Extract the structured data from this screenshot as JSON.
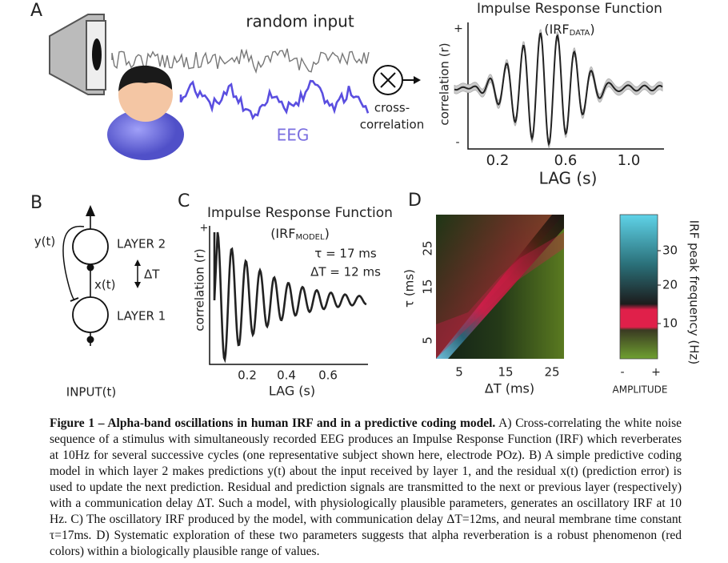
{
  "figure": {
    "panel_a": {
      "letter": "A",
      "stimulus_label": "random input",
      "eeg_label": "EEG",
      "operator_label": [
        "cross-",
        "correlation"
      ],
      "plot": {
        "title": "Impulse Response Function",
        "subtitle_prefix": "(IRF",
        "subtitle_sub": "DATA",
        "subtitle_suffix": ")",
        "y_label": "correlation (r)",
        "y_plus": "+",
        "y_minus": "-",
        "x_ticks": [
          "0.2",
          "0.6",
          "1.0"
        ],
        "x_label": "LAG (s)"
      }
    },
    "panel_b": {
      "letter": "B",
      "feedback_label": "y(t)",
      "upper_layer": "LAYER 2",
      "delay_label": "ΔT",
      "residual_label": "x(t)",
      "lower_layer": "LAYER 1",
      "input_label": "INPUT(t)"
    },
    "panel_c": {
      "letter": "C",
      "title": "Impulse Response Function",
      "subtitle_prefix": "(IRF",
      "subtitle_sub": "MODEL",
      "subtitle_suffix": ")",
      "tau_label": "τ = 17 ms",
      "delay_label": "ΔT = 12 ms",
      "y_label": "correlation (r)",
      "y_plus": "+",
      "x_ticks": [
        "0.2",
        "0.4",
        "0.6"
      ],
      "x_label": "LAG (s)"
    },
    "panel_d": {
      "letter": "D",
      "y_label": "τ (ms)",
      "y_ticks": [
        "5",
        "15",
        "25"
      ],
      "x_ticks": [
        "5",
        "15",
        "25"
      ],
      "x_label": "ΔT (ms)",
      "colorbar_ticks": [
        "10",
        "20",
        "30"
      ],
      "colorbar_label": "IRF peak frequency (Hz)",
      "amp_minus": "-",
      "amp_plus": "+",
      "amp_label": "AMPLITUDE"
    }
  },
  "caption": {
    "title": "Figure 1 – Alpha-band oscillations in human IRF and in a predictive coding model.",
    "text": " A) Cross-correlating the white noise sequence of a stimulus with simultaneously recorded EEG produces an Impulse Response Function (IRF) which reverberates at 10Hz for several successive cycles (one representative subject shown here, electrode POz). B) A simple predictive coding model in which layer 2 makes predictions y(t) about the input received by layer 1, and the residual x(t) (prediction error) is used to update the next prediction. Residual and prediction signals are transmitted to the next or previous layer (respectively) with a communication delay ΔT. Such a model, with physiologically plausible parameters, generates an oscillatory IRF at 10 Hz. C) The oscillatory IRF produced by the model, with communication delay ΔT=12ms, and neural membrane time constant τ=17ms. D) Systematic exploration of these two parameters suggests that alpha reverberation is a robust phenomenon (red colors) within a biologically plausible range of values."
  }
}
